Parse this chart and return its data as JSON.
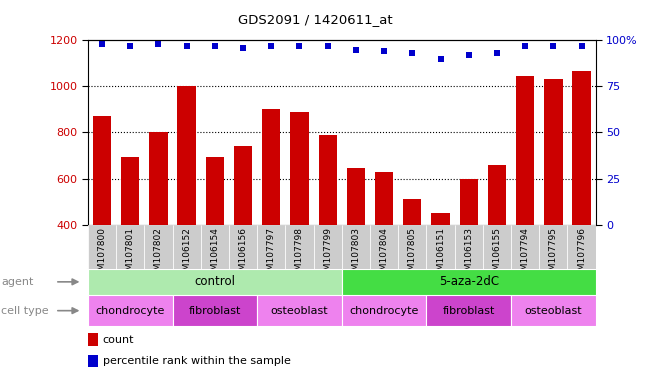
{
  "title": "GDS2091 / 1420611_at",
  "samples": [
    "GSM107800",
    "GSM107801",
    "GSM107802",
    "GSM106152",
    "GSM106154",
    "GSM106156",
    "GSM107797",
    "GSM107798",
    "GSM107799",
    "GSM107803",
    "GSM107804",
    "GSM107805",
    "GSM106151",
    "GSM106153",
    "GSM106155",
    "GSM107794",
    "GSM107795",
    "GSM107796"
  ],
  "counts": [
    870,
    695,
    800,
    1000,
    695,
    740,
    900,
    890,
    790,
    645,
    630,
    510,
    450,
    600,
    660,
    1045,
    1030,
    1065
  ],
  "percentile_ranks": [
    98,
    97,
    98,
    97,
    97,
    96,
    97,
    97,
    97,
    95,
    94,
    93,
    90,
    92,
    93,
    97,
    97,
    97
  ],
  "bar_color": "#cc0000",
  "dot_color": "#0000cc",
  "ylim_left": [
    400,
    1200
  ],
  "ylim_right": [
    0,
    100
  ],
  "yticks_left": [
    400,
    600,
    800,
    1000,
    1200
  ],
  "yticks_right": [
    0,
    25,
    50,
    75,
    100
  ],
  "grid_values": [
    600,
    800,
    1000
  ],
  "agent_control_color": "#aeeaae",
  "agent_aza_color": "#44dd44",
  "cell_chondro_color": "#ee82ee",
  "cell_fibro_color": "#cc44cc",
  "cell_osteo_color": "#ee82ee",
  "tick_bg_color": "#cccccc",
  "legend_count_color": "#cc0000",
  "legend_dot_color": "#0000cc",
  "tick_label_fontsize": 6.5,
  "bar_width": 0.65,
  "n_control": 9,
  "n_aza": 9
}
